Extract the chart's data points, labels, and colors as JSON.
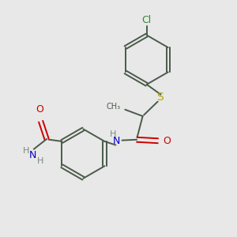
{
  "bg_color": "#e8e8e8",
  "bond_color": "#4a5a4a",
  "cl_color": "#2d8a2d",
  "s_color": "#b8a800",
  "o_color": "#cc0000",
  "n_color": "#0000cc",
  "h_color": "#7a8a7a",
  "figsize": [
    3.0,
    3.0
  ],
  "dpi": 100,
  "xlim": [
    0,
    10
  ],
  "ylim": [
    0,
    10
  ]
}
